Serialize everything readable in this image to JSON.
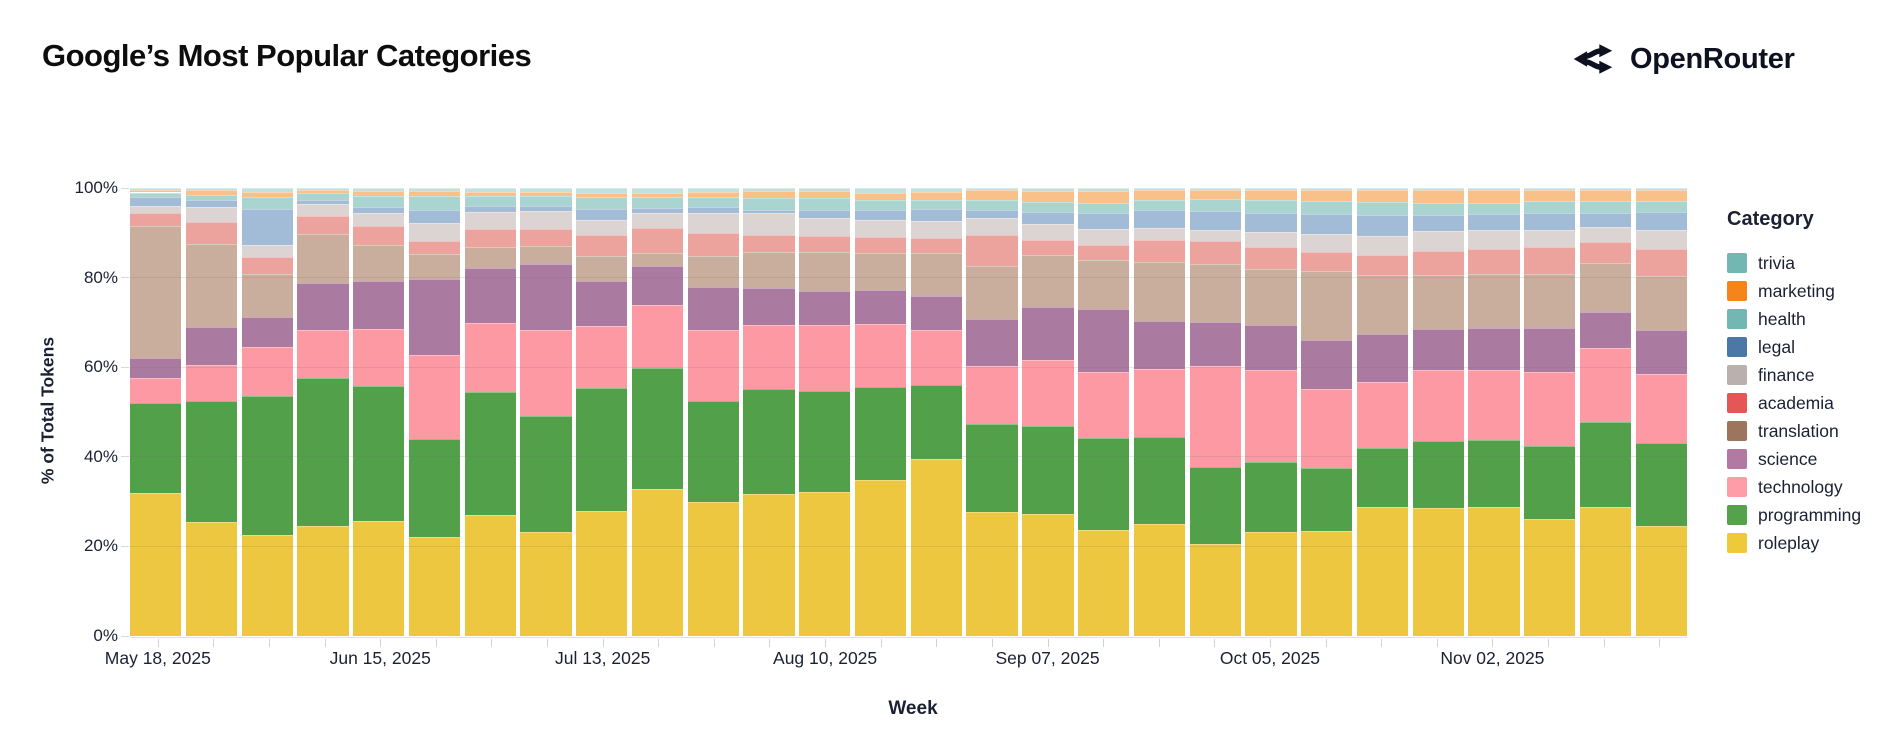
{
  "header": {
    "title": "Google’s Most Popular Categories",
    "logo_text": "OpenRouter"
  },
  "axes": {
    "y_title": "% of Total Tokens",
    "x_title": "Week",
    "y_ticks": [
      0,
      20,
      40,
      60,
      80,
      100
    ],
    "y_tick_labels": [
      "0%",
      "20%",
      "40%",
      "60%",
      "80%",
      "100%"
    ],
    "x_tick_label_every": 4,
    "x_tick_labels_shown": [
      "May 18, 2025",
      "Jun 15, 2025",
      "Jul 13, 2025",
      "Aug 10, 2025",
      "Sep 07, 2025",
      "Oct 05, 2025",
      "Nov 02, 2025"
    ]
  },
  "legend": {
    "title": "Category",
    "items": [
      "trivia",
      "marketing",
      "health",
      "legal",
      "finance",
      "academia",
      "translation",
      "science",
      "technology",
      "programming",
      "roleplay"
    ]
  },
  "chart_data": {
    "type": "bar",
    "subtype": "stacked-100pct-weekly",
    "title": "Google’s Most Popular Categories",
    "xlabel": "Week",
    "ylabel": "% of Total Tokens",
    "ylim": [
      0,
      100
    ],
    "grid": true,
    "legend_position": "right",
    "categories": [
      "May 18, 2025",
      "May 25, 2025",
      "Jun 01, 2025",
      "Jun 08, 2025",
      "Jun 15, 2025",
      "Jun 22, 2025",
      "Jun 29, 2025",
      "Jul 06, 2025",
      "Jul 13, 2025",
      "Jul 20, 2025",
      "Jul 27, 2025",
      "Aug 03, 2025",
      "Aug 10, 2025",
      "Aug 17, 2025",
      "Aug 24, 2025",
      "Aug 31, 2025",
      "Sep 07, 2025",
      "Sep 14, 2025",
      "Sep 21, 2025",
      "Sep 28, 2025",
      "Oct 05, 2025",
      "Oct 12, 2025",
      "Oct 19, 2025",
      "Oct 26, 2025",
      "Nov 02, 2025",
      "Nov 09, 2025",
      "Nov 16, 2025",
      "Nov 23, 2025"
    ],
    "series": [
      {
        "name": "trivia",
        "legend_color": "#72b7b2",
        "bar_color": "#c2e1de",
        "values": [
          0.5,
          0.5,
          0.8,
          0.5,
          0.7,
          0.7,
          0.8,
          0.8,
          1.0,
          1.0,
          0.8,
          0.7,
          0.7,
          1.0,
          0.8,
          0.5,
          0.7,
          0.7,
          0.5,
          0.5,
          0.5,
          0.5,
          0.5,
          0.5,
          0.5,
          0.4,
          0.5,
          0.5
        ]
      },
      {
        "name": "marketing",
        "legend_color": "#f58518",
        "bar_color": "#f9c189",
        "values": [
          0.5,
          1.0,
          1.3,
          0.7,
          1.1,
          1.1,
          1.0,
          1.0,
          0.9,
          0.9,
          1.1,
          1.5,
          1.5,
          1.7,
          1.8,
          2.2,
          2.4,
          2.6,
          2.1,
          1.9,
          2.2,
          2.4,
          2.6,
          2.9,
          2.8,
          2.6,
          2.4,
          2.4
        ]
      },
      {
        "name": "health",
        "legend_color": "#72b7b2",
        "bar_color": "#a9d4d0",
        "values": [
          1.0,
          1.2,
          2.5,
          1.5,
          2.4,
          3.1,
          2.2,
          2.3,
          2.8,
          2.6,
          2.4,
          2.7,
          2.6,
          2.2,
          2.1,
          2.2,
          2.2,
          2.2,
          2.4,
          2.7,
          2.8,
          2.9,
          2.9,
          2.6,
          2.5,
          2.6,
          2.6,
          2.4
        ]
      },
      {
        "name": "legal",
        "legend_color": "#4c78a8",
        "bar_color": "#a2bcd8",
        "values": [
          2.0,
          1.5,
          8.1,
          0.8,
          1.3,
          2.8,
          1.3,
          1.1,
          2.4,
          1.1,
          1.3,
          0.7,
          1.8,
          2.2,
          2.7,
          1.8,
          2.7,
          3.7,
          3.9,
          4.2,
          4.4,
          4.4,
          4.7,
          3.7,
          3.7,
          3.7,
          3.3,
          4.2
        ]
      },
      {
        "name": "finance",
        "legend_color": "#bab0ac",
        "bar_color": "#dcd4d2",
        "values": [
          1.5,
          3.3,
          2.6,
          2.7,
          2.9,
          4.0,
          3.7,
          4.0,
          3.3,
          3.3,
          4.4,
          4.8,
          4.0,
          3.7,
          3.7,
          3.7,
          3.5,
          3.5,
          2.7,
          2.6,
          3.3,
          4.0,
          4.1,
          4.4,
          4.1,
          4.0,
          3.3,
          4.1
        ]
      },
      {
        "name": "academia",
        "legend_color": "#e45756",
        "bar_color": "#eca39e",
        "values": [
          3.0,
          5.0,
          4.0,
          4.0,
          4.3,
          2.9,
          4.0,
          3.7,
          4.8,
          5.5,
          5.1,
          3.7,
          3.7,
          3.7,
          3.3,
          7.0,
          3.4,
          3.2,
          5.0,
          5.1,
          4.9,
          4.4,
          4.4,
          5.5,
          5.7,
          5.9,
          4.8,
          6.2
        ]
      },
      {
        "name": "translation",
        "legend_color": "#9d755d",
        "bar_color": "#c9ae9d",
        "values": [
          29.5,
          18.5,
          9.6,
          11.0,
          7.9,
          5.5,
          4.8,
          4.0,
          5.5,
          2.9,
          7.0,
          8.1,
          8.5,
          8.1,
          9.6,
          11.8,
          11.5,
          10.9,
          13.2,
          13.0,
          12.5,
          15.4,
          13.0,
          12.1,
          12.0,
          12.1,
          11.0,
          12.0
        ]
      },
      {
        "name": "science",
        "legend_color": "#b279a2",
        "bar_color": "#ab7aa0",
        "values": [
          4.5,
          8.5,
          6.6,
          10.6,
          10.7,
          16.9,
          12.1,
          14.7,
          9.9,
          8.8,
          9.6,
          8.1,
          7.7,
          7.7,
          7.7,
          10.3,
          11.8,
          14.0,
          10.7,
          9.9,
          10.1,
          11.0,
          10.7,
          9.2,
          9.6,
          9.9,
          8.1,
          9.9
        ]
      },
      {
        "name": "technology",
        "legend_color": "#ff9da6",
        "bar_color": "#fd99a3",
        "values": [
          5.5,
          8.0,
          11.0,
          10.7,
          12.5,
          18.7,
          15.4,
          19.1,
          14.0,
          14.0,
          15.8,
          14.3,
          14.7,
          14.0,
          12.1,
          12.9,
          14.7,
          14.7,
          15.4,
          22.4,
          20.6,
          17.6,
          14.7,
          15.8,
          15.7,
          16.5,
          16.5,
          15.4
        ]
      },
      {
        "name": "programming",
        "legend_color": "#54a24b",
        "bar_color": "#53a04b",
        "values": [
          20.0,
          27.0,
          31.0,
          33.0,
          30.0,
          21.7,
          27.2,
          25.7,
          27.2,
          26.8,
          22.4,
          23.2,
          22.4,
          20.6,
          16.5,
          19.5,
          19.5,
          20.6,
          19.5,
          17.3,
          15.8,
          14.0,
          13.0,
          15.1,
          14.9,
          16.5,
          19.1,
          18.8
        ]
      },
      {
        "name": "roleplay",
        "legend_color": "#eeca3b",
        "bar_color": "#ecc73f",
        "values": [
          32.0,
          25.5,
          22.5,
          24.5,
          25.5,
          22.0,
          26.8,
          23.2,
          27.9,
          32.7,
          29.8,
          31.6,
          32.0,
          34.6,
          39.4,
          27.6,
          27.2,
          23.5,
          25.0,
          20.6,
          23.2,
          23.5,
          28.5,
          28.7,
          29.0,
          26.1,
          29.0,
          24.6
        ]
      }
    ]
  }
}
